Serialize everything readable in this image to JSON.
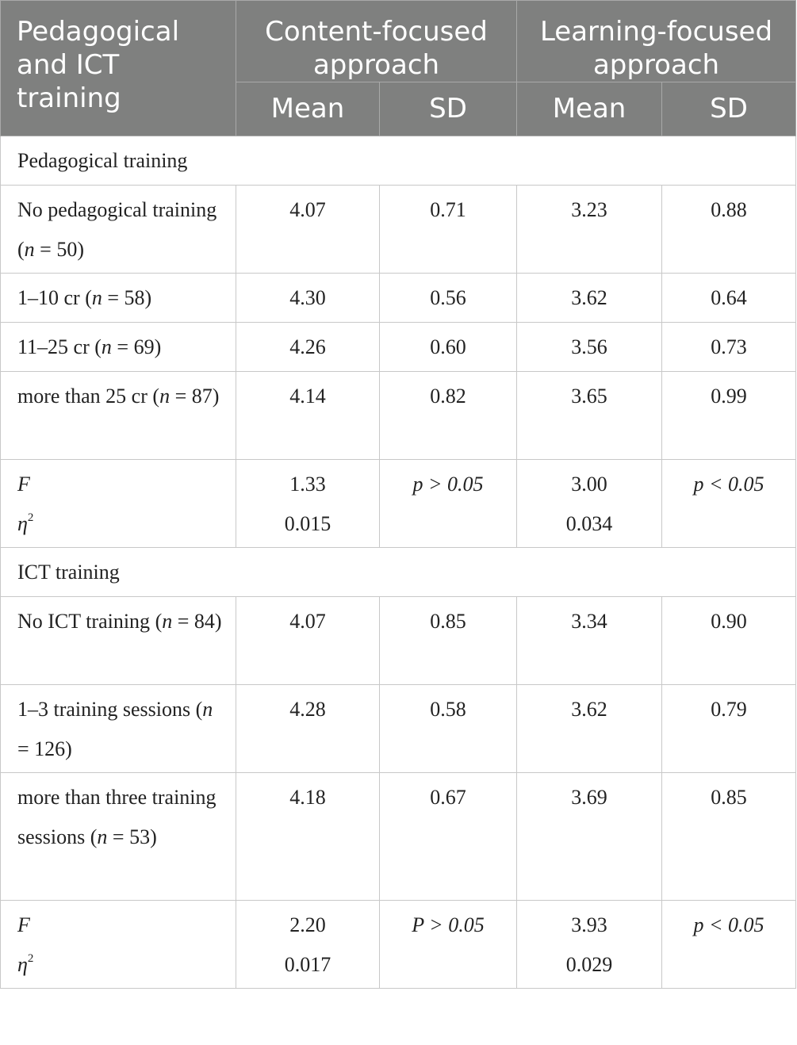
{
  "header": {
    "row_label": "Pedagogical and ICT training",
    "groups": [
      "Content-focused approach",
      "Learning-focused approach"
    ],
    "subheaders": [
      "Mean",
      "SD",
      "Mean",
      "SD"
    ]
  },
  "sections": [
    {
      "title": "Pedagogical training",
      "rows": [
        {
          "label": "No pedagogical training",
          "n": "50",
          "cf_mean": "4.07",
          "cf_sd": "0.71",
          "lf_mean": "3.23",
          "lf_sd": "0.88"
        },
        {
          "label": "1–10 cr",
          "n": "58",
          "cf_mean": "4.30",
          "cf_sd": "0.56",
          "lf_mean": "3.62",
          "lf_sd": "0.64"
        },
        {
          "label": "11–25 cr",
          "n": "69",
          "cf_mean": "4.26",
          "cf_sd": "0.60",
          "lf_mean": "3.56",
          "lf_sd": "0.73"
        },
        {
          "label": "more than 25 cr",
          "n": "87",
          "cf_mean": "4.14",
          "cf_sd": "0.82",
          "lf_mean": "3.65",
          "lf_sd": "0.99"
        }
      ],
      "stats": {
        "f_label": "F",
        "eta_label": "η",
        "cf_f": "1.33",
        "cf_eta": "0.015",
        "cf_p": "p > 0.05",
        "lf_f": "3.00",
        "lf_eta": "0.034",
        "lf_p": "p < 0.05"
      }
    },
    {
      "title": "ICT training",
      "rows": [
        {
          "label": "No ICT training",
          "n": "84",
          "cf_mean": "4.07",
          "cf_sd": "0.85",
          "lf_mean": "3.34",
          "lf_sd": "0.90"
        },
        {
          "label": "1–3 training sessions",
          "n": "126",
          "cf_mean": "4.28",
          "cf_sd": "0.58",
          "lf_mean": "3.62",
          "lf_sd": "0.79"
        },
        {
          "label": "more than three training sessions",
          "n": "53",
          "cf_mean": "4.18",
          "cf_sd": "0.67",
          "lf_mean": "3.69",
          "lf_sd": "0.85"
        }
      ],
      "stats": {
        "f_label": "F",
        "eta_label": "η",
        "cf_f": "2.20",
        "cf_eta": "0.017",
        "cf_p": "P > 0.05",
        "lf_f": "3.93",
        "lf_eta": "0.029",
        "lf_p": "p < 0.05"
      }
    }
  ]
}
